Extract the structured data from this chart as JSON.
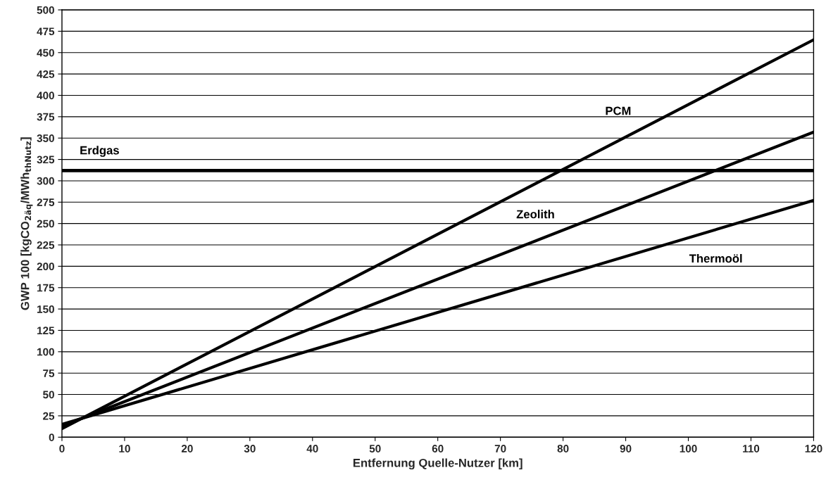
{
  "chart_data": {
    "type": "line",
    "xlabel": "Entfernung Quelle-Nutzer [km]",
    "ylabel": "GWP 100 [kgCO$_{2äq}$/MWh$_{thNutz}$]",
    "x": [
      0,
      120
    ],
    "series": [
      {
        "name": "PCM",
        "color": "#000000",
        "values": [
          10,
          465
        ]
      },
      {
        "name": "Zeolith",
        "color": "#000000",
        "values": [
          13,
          357
        ]
      },
      {
        "name": "Thermoöl",
        "color": "#000000",
        "values": [
          15,
          277
        ]
      }
    ],
    "xlim": [
      0,
      120
    ],
    "xticks": [
      0,
      10,
      20,
      30,
      40,
      50,
      60,
      70,
      80,
      90,
      100,
      110,
      120
    ],
    "ylim": [
      0,
      500
    ],
    "yticks": [
      0,
      25,
      50,
      75,
      100,
      125,
      150,
      175,
      200,
      225,
      250,
      275,
      300,
      325,
      350,
      375,
      400,
      425,
      450,
      475,
      500
    ],
    "ref_lines": [
      {
        "axis": "y",
        "value": 312,
        "label": "Erdgas",
        "color": "#000000",
        "line_style": "solid"
      }
    ],
    "grid": "y",
    "legend": false,
    "marker": "none",
    "line_style": "solid"
  }
}
